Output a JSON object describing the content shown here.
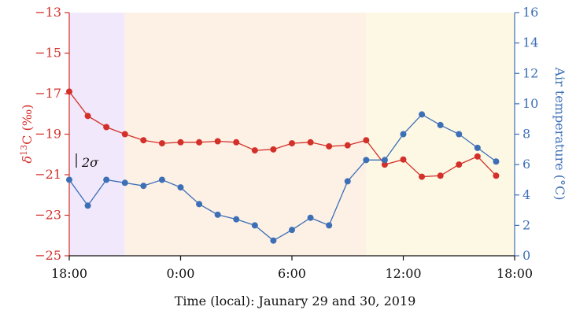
{
  "chart_data": {
    "type": "line",
    "xlabel": "Time (local): Jaunary 29 and 30, 2019",
    "ylabel_left_main": "δ",
    "ylabel_left_sup": "13",
    "ylabel_left_rest": "C (‰)",
    "ylabel_right": "Air temperature (°C)",
    "x_tick_labels": [
      "18:00",
      "0:00",
      "6:00",
      "12:00",
      "18:00"
    ],
    "x_tick_hours": [
      0,
      6,
      12,
      18,
      24
    ],
    "xlim_hours": [
      0,
      24
    ],
    "ylim_left": [
      -25,
      -13
    ],
    "yticks_left": [
      -25,
      -23,
      -21,
      -19,
      -17,
      -15,
      -13
    ],
    "ylim_right": [
      0,
      16
    ],
    "yticks_right": [
      0,
      2,
      4,
      6,
      8,
      10,
      12,
      14,
      16
    ],
    "annotation": "2σ",
    "grid": false,
    "colors": {
      "left_axis": "#d3302a",
      "right_axis": "#3d6fb6",
      "band1": "#f1e9fb",
      "band2": "#fdf1e5",
      "band3": "#fdf8e4"
    },
    "bands_hours": [
      [
        0,
        3
      ],
      [
        3,
        16
      ],
      [
        16,
        24
      ]
    ],
    "series": [
      {
        "axis": "left",
        "color": "#d3302a",
        "x_hours": [
          0,
          1,
          2,
          3,
          4,
          5,
          6,
          7,
          8,
          9,
          10,
          11,
          12,
          13,
          14,
          15,
          16,
          17,
          18,
          19,
          20,
          21,
          22,
          23,
          24
        ],
        "values": [
          -16.9,
          -18.1,
          -18.65,
          -19.0,
          -19.3,
          -19.45,
          -19.4,
          -19.4,
          -19.35,
          -19.4,
          -19.8,
          -19.75,
          -19.45,
          -19.4,
          -19.6,
          -19.55,
          -19.3,
          -20.5,
          -20.25,
          -21.1,
          -21.05,
          -20.5,
          -20.1,
          -21.05,
          null
        ]
      },
      {
        "axis": "right",
        "color": "#3d6fb6",
        "x_hours": [
          0,
          1,
          2,
          3,
          4,
          5,
          6,
          7,
          8,
          9,
          10,
          11,
          12,
          13,
          14,
          15,
          16,
          17,
          18,
          19,
          20,
          21,
          22,
          23,
          24
        ],
        "values": [
          5.0,
          3.3,
          5.0,
          4.8,
          4.6,
          5.0,
          4.5,
          3.4,
          2.7,
          2.4,
          2.0,
          1.0,
          1.7,
          2.5,
          2.0,
          4.9,
          6.3,
          6.3,
          8.0,
          9.3,
          8.6,
          8.0,
          7.1,
          6.2,
          null
        ]
      }
    ]
  }
}
